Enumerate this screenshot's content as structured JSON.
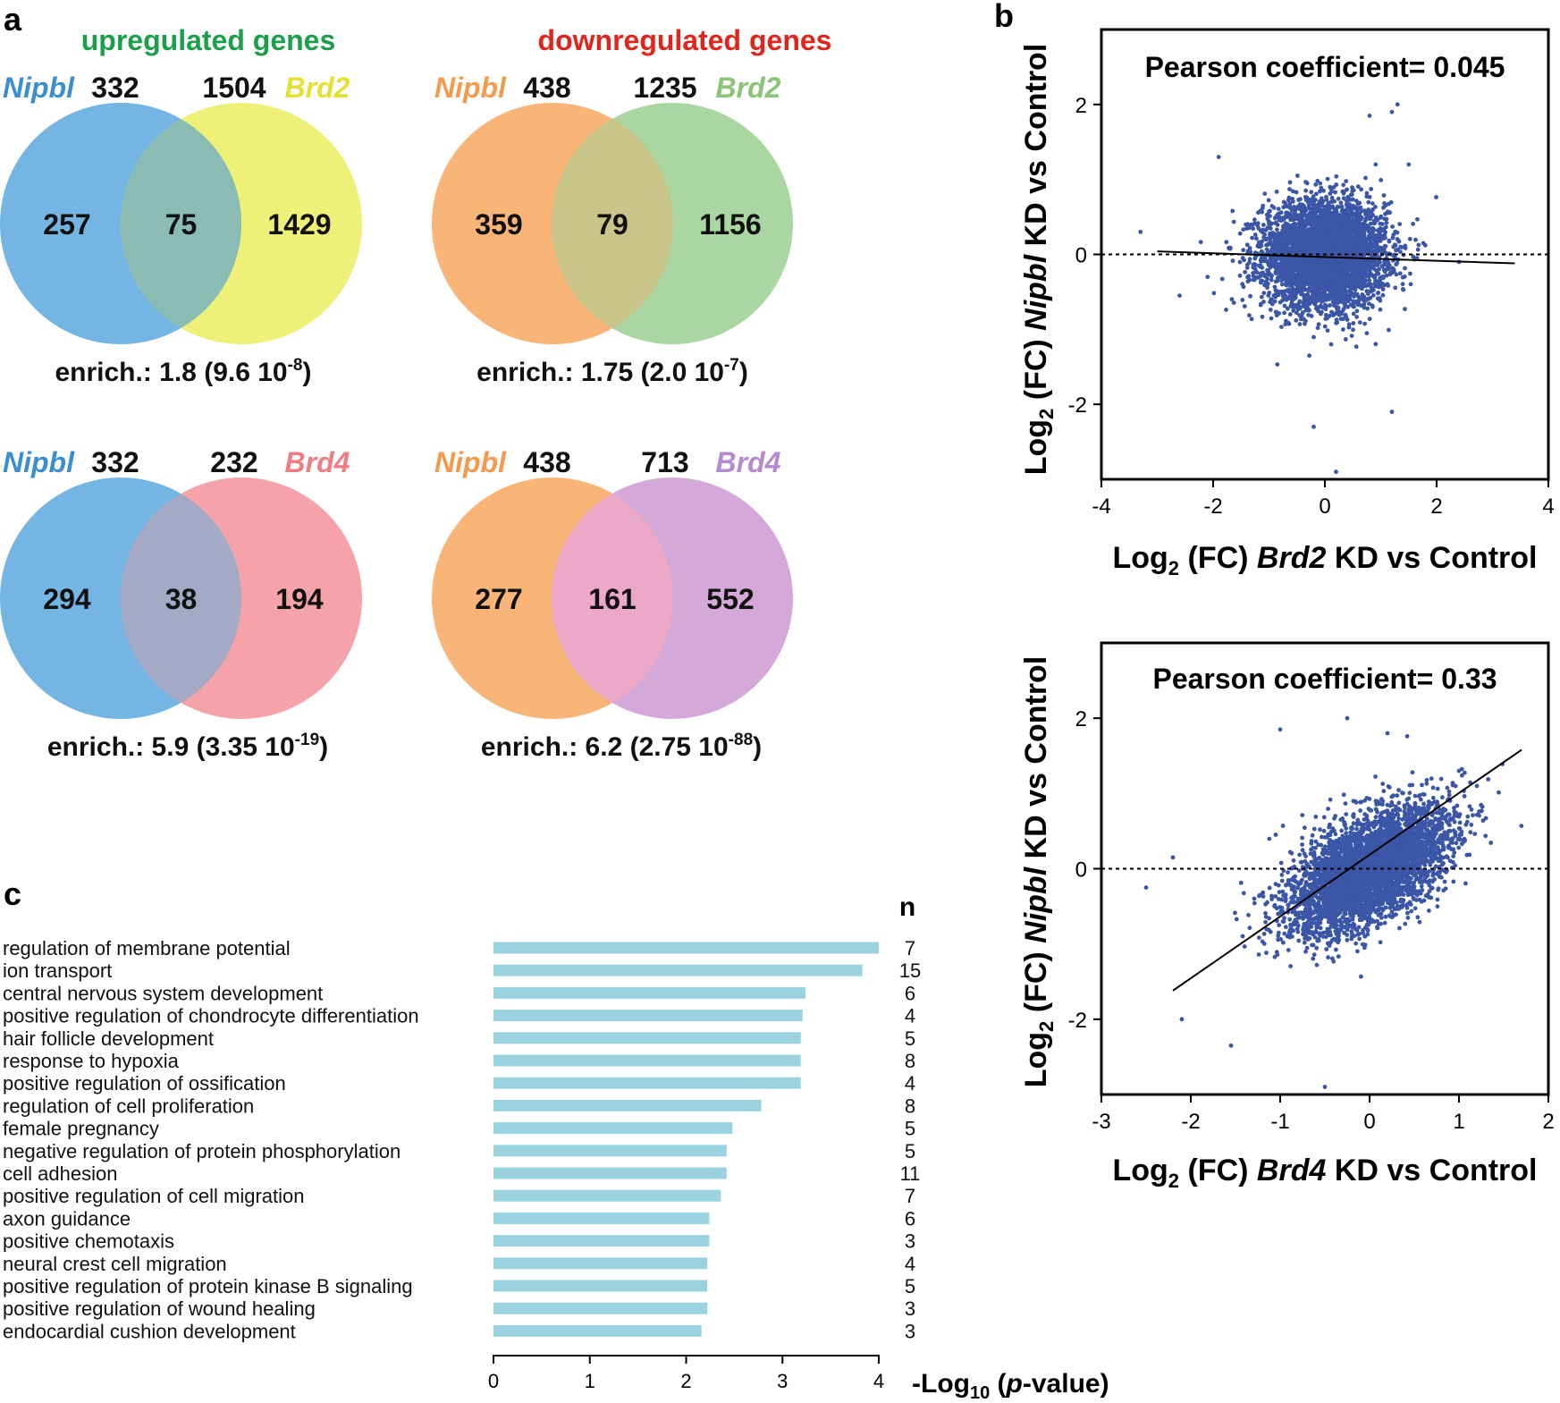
{
  "panel_labels": {
    "a": "a",
    "b": "b",
    "c": "c"
  },
  "venn": {
    "up_title": "upregulated genes",
    "down_title": "downregulated genes",
    "colors": {
      "up_title": "#1a9f4a",
      "down_title": "#e1251b"
    },
    "diagrams": [
      {
        "left_name": "Nipbl",
        "left_total": "332",
        "right_total": "1504",
        "right_name": "Brd2",
        "left_only": "257",
        "overlap": "75",
        "right_only": "1429",
        "enrich_label": "enrich.: 1.8 (9.6 10",
        "enrich_exp": "-8",
        "enrich_close": ")",
        "left_color": "#74b5e3",
        "right_color": "#eef078",
        "overlap_color": "#8bbcb4",
        "left_name_color": "#3b8fd0",
        "right_name_color": "#e3e233"
      },
      {
        "left_name": "Nipbl",
        "left_total": "438",
        "right_total": "1235",
        "right_name": "Brd2",
        "left_only": "359",
        "overlap": "79",
        "right_only": "1156",
        "enrich_label": "enrich.: 1.75 (2.0 10",
        "enrich_exp": "-7",
        "enrich_close": ")",
        "left_color": "#f9b478",
        "right_color": "#a9d6a1",
        "overlap_color": "#c9c488",
        "left_name_color": "#f49a4d",
        "right_name_color": "#8cc476"
      },
      {
        "left_name": "Nipbl",
        "left_total": "332",
        "right_total": "232",
        "right_name": "Brd4",
        "left_only": "294",
        "overlap": "38",
        "right_only": "194",
        "enrich_label": "enrich.: 5.9 (3.35 10",
        "enrich_exp": "-19",
        "enrich_close": ")",
        "left_color": "#74b5e3",
        "right_color": "#f5a3a8",
        "overlap_color": "#a4a9c6",
        "left_name_color": "#3b8fd0",
        "right_name_color": "#ee7e83"
      },
      {
        "left_name": "Nipbl",
        "left_total": "438",
        "right_total": "713",
        "right_name": "Brd4",
        "left_only": "277",
        "overlap": "161",
        "right_only": "552",
        "enrich_label": "enrich.: 6.2 (2.75 10",
        "enrich_exp": "-88",
        "enrich_close": ")",
        "left_color": "#f9b478",
        "right_color": "#d4a9d9",
        "overlap_color": "#eba8c7",
        "left_name_color": "#f49a4d",
        "right_name_color": "#b48ad0"
      }
    ]
  },
  "chart_data": [
    {
      "type": "scatter",
      "title": "Pearson coefficient= 0.045",
      "xlabel_pre": "Log",
      "xlabel_sub": "2",
      "xlabel_mid": " (FC) ",
      "xlabel_gene": "Brd2",
      "xlabel_post": " KD vs Control",
      "ylabel_pre": "Log",
      "ylabel_sub": "2",
      "ylabel_mid": " (FC) ",
      "ylabel_gene": "Nipbl",
      "ylabel_post": " KD vs Control",
      "xlim": [
        -4,
        4
      ],
      "ylim": [
        -3,
        3
      ],
      "xticks": [
        "-4",
        "-2",
        "0",
        "2",
        "4"
      ],
      "xtick_values": [
        -4,
        -2,
        0,
        2,
        4
      ],
      "yticks": [
        "-2",
        "0",
        "2"
      ],
      "ytick_values": [
        -2,
        0,
        2
      ],
      "pearson": 0.045,
      "fit_line": [
        [
          -3.0,
          0.04
        ],
        [
          3.4,
          -0.12
        ]
      ],
      "point_cloud": {
        "center_x": 0.0,
        "center_y": 0.0,
        "sd_x": 0.55,
        "sd_y": 0.35
      },
      "outliers": [
        [
          -3.3,
          0.3
        ],
        [
          -2.6,
          -0.55
        ],
        [
          -2.1,
          -0.3
        ],
        [
          1.2,
          1.9
        ],
        [
          1.3,
          2.0
        ],
        [
          0.2,
          -2.9
        ],
        [
          -0.2,
          -2.3
        ],
        [
          1.2,
          -2.1
        ],
        [
          -1.9,
          1.3
        ],
        [
          0.8,
          1.85
        ],
        [
          2.4,
          -0.1
        ],
        [
          1.5,
          1.2
        ]
      ],
      "point_color": "#3b56a6"
    },
    {
      "type": "scatter",
      "title": "Pearson coefficient= 0.33",
      "xlabel_pre": "Log",
      "xlabel_sub": "2",
      "xlabel_mid": " (FC) ",
      "xlabel_gene": "Brd4",
      "xlabel_post": " KD vs Control",
      "ylabel_pre": "Log",
      "ylabel_sub": "2",
      "ylabel_mid": " (FC) ",
      "ylabel_gene": "Nipbl",
      "ylabel_post": " KD vs Control",
      "xlim": [
        -3,
        2
      ],
      "ylim": [
        -3,
        3
      ],
      "xticks": [
        "-3",
        "-2",
        "-1",
        "0",
        "1",
        "2"
      ],
      "xtick_values": [
        -3,
        -2,
        -1,
        0,
        1,
        2
      ],
      "yticks": [
        "-2",
        "0",
        "2"
      ],
      "ytick_values": [
        -2,
        0,
        2
      ],
      "pearson": 0.33,
      "fit_line": [
        [
          -2.2,
          -1.62
        ],
        [
          1.7,
          1.58
        ]
      ],
      "point_cloud": {
        "center_x": 0.0,
        "center_y": 0.0,
        "sd_x": 0.45,
        "sd_y": 0.35,
        "slope": 0.5
      },
      "outliers": [
        [
          -2.5,
          -0.25
        ],
        [
          -2.1,
          -2.0
        ],
        [
          -1.55,
          -2.35
        ],
        [
          -0.5,
          -2.9
        ],
        [
          -1.0,
          1.85
        ],
        [
          -0.25,
          2.0
        ],
        [
          0.2,
          1.8
        ],
        [
          1.2,
          1.1
        ],
        [
          -2.2,
          0.15
        ],
        [
          1.0,
          1.3
        ]
      ],
      "point_color": "#3b56a6"
    },
    {
      "type": "bar",
      "orientation": "horizontal",
      "n_header": "n",
      "xlabel_pre": "-Log",
      "xlabel_sub": "10",
      "xlabel_mid": " (",
      "xlabel_italic": "p",
      "xlabel_post": "-value)",
      "xlim": [
        0,
        4
      ],
      "xticks": [
        "0",
        "1",
        "2",
        "3",
        "4"
      ],
      "xtick_values": [
        0,
        1,
        2,
        3,
        4
      ],
      "bar_color": "#9ad3df",
      "categories": [
        "regulation of membrane potential",
        "ion transport",
        "central nervous system development",
        "positive regulation of chondrocyte differentiation",
        "hair follicle development",
        "response to hypoxia",
        "positive regulation of ossification",
        "regulation of cell proliferation",
        "female pregnancy",
        "negative regulation of protein phosphorylation",
        "cell adhesion",
        "positive regulation of cell migration",
        "axon guidance",
        "positive chemotaxis",
        "neural crest cell migration",
        "positive regulation of protein kinase B signaling",
        "positive regulation of wound healing",
        "endocardial cushion development"
      ],
      "values": [
        4.0,
        3.83,
        3.24,
        3.21,
        3.19,
        3.19,
        3.19,
        2.78,
        2.48,
        2.42,
        2.42,
        2.36,
        2.24,
        2.24,
        2.22,
        2.22,
        2.22,
        2.16
      ],
      "n": [
        "7",
        "15",
        "6",
        "4",
        "5",
        "8",
        "4",
        "8",
        "5",
        "5",
        "11",
        "7",
        "6",
        "3",
        "4",
        "5",
        "3",
        "3"
      ]
    }
  ]
}
